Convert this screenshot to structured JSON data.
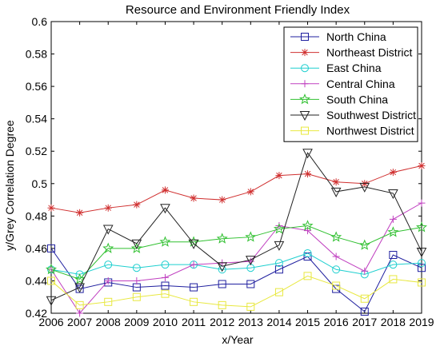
{
  "chart_data": {
    "type": "line",
    "title": "Resource and Environment Friendly Index",
    "xlabel": "x/Year",
    "ylabel": "y/Grey Correlation Degree",
    "ylim": [
      0.42,
      0.6
    ],
    "yticks": [
      "0.42",
      "0.44",
      "0.46",
      "0.48",
      "0.5",
      "0.52",
      "0.54",
      "0.56",
      "0.58",
      "0.6"
    ],
    "categories": [
      "2006",
      "2007",
      "2008",
      "2009",
      "2010",
      "2011",
      "2012",
      "2013",
      "2014",
      "2015",
      "2016",
      "2017",
      "2018",
      "2019"
    ],
    "legend_position": "top-right",
    "grid": false,
    "series": [
      {
        "name": "North China",
        "color": "#1f1f9f",
        "marker": "square",
        "values": [
          0.46,
          0.435,
          0.439,
          0.436,
          0.437,
          0.436,
          0.438,
          0.438,
          0.447,
          0.455,
          0.435,
          0.421,
          0.456,
          0.448
        ]
      },
      {
        "name": "Northeast District",
        "color": "#d03030",
        "marker": "asterisk",
        "values": [
          0.485,
          0.482,
          0.485,
          0.487,
          0.496,
          0.491,
          0.49,
          0.495,
          0.505,
          0.506,
          0.501,
          0.5,
          0.507,
          0.511
        ]
      },
      {
        "name": "East China",
        "color": "#1ecfcf",
        "marker": "circle",
        "values": [
          0.447,
          0.444,
          0.45,
          0.448,
          0.45,
          0.45,
          0.447,
          0.448,
          0.451,
          0.457,
          0.447,
          0.444,
          0.45,
          0.451
        ]
      },
      {
        "name": "Central China",
        "color": "#c040c0",
        "marker": "plus",
        "values": [
          0.447,
          0.42,
          0.44,
          0.44,
          0.442,
          0.45,
          0.451,
          0.452,
          0.474,
          0.471,
          0.455,
          0.446,
          0.478,
          0.488
        ]
      },
      {
        "name": "South China",
        "color": "#30c030",
        "marker": "star",
        "values": [
          0.447,
          0.441,
          0.46,
          0.46,
          0.464,
          0.464,
          0.466,
          0.467,
          0.472,
          0.474,
          0.467,
          0.462,
          0.47,
          0.473
        ]
      },
      {
        "name": "Southwest District",
        "color": "#222222",
        "marker": "triangle-down",
        "values": [
          0.428,
          0.436,
          0.472,
          0.463,
          0.485,
          0.463,
          0.449,
          0.453,
          0.462,
          0.519,
          0.495,
          0.498,
          0.494,
          0.458
        ]
      },
      {
        "name": "Northwest District",
        "color": "#e8e840",
        "marker": "square",
        "values": [
          0.44,
          0.425,
          0.427,
          0.43,
          0.432,
          0.427,
          0.425,
          0.424,
          0.433,
          0.443,
          0.437,
          0.429,
          0.441,
          0.439
        ]
      }
    ]
  }
}
